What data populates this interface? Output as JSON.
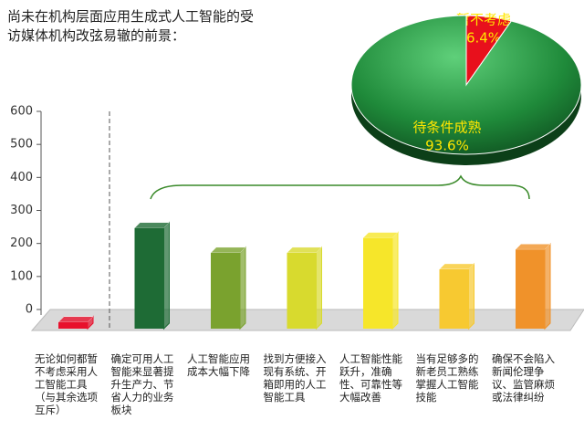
{
  "chart_data": [
    {
      "type": "bar3d",
      "title": "尚未在机构层面应用生成式人工智能的受访媒体机构改弦易辙的前景：",
      "categories": [
        "无论如何都暂不考虑采用人工智能工具（与其余选项互斥）",
        "确定可用人工智能来显著提升生产力、节省人力的业务板块",
        "人工智能应用成本大幅下降",
        "找到方便接入现有系统、开箱即用的人工智能工具",
        "人工智能性能跃升，准确性、可靠性等大幅改善",
        "当有足够多的新老员工熟练掌握人工智能技能",
        "确保不会陷入新闻伦理争议、监管麻烦或法律纠纷"
      ],
      "values": [
        20,
        305,
        230,
        230,
        275,
        180,
        240
      ],
      "colors": [
        "#e8102c",
        "#1e6b35",
        "#7aa22e",
        "#d8da2e",
        "#f6e62a",
        "#f7c931",
        "#f0922a"
      ],
      "ylim": [
        0,
        600
      ],
      "yticks": [
        0,
        100,
        200,
        300,
        400,
        500,
        600
      ]
    },
    {
      "type": "pie3d",
      "categories": [
        "暂不考虑",
        "待条件成熟"
      ],
      "values": [
        6.4,
        93.6
      ],
      "value_labels": [
        "6.4%",
        "93.6%"
      ],
      "colors": [
        "#e8101c",
        "#1f8a3a"
      ]
    }
  ]
}
